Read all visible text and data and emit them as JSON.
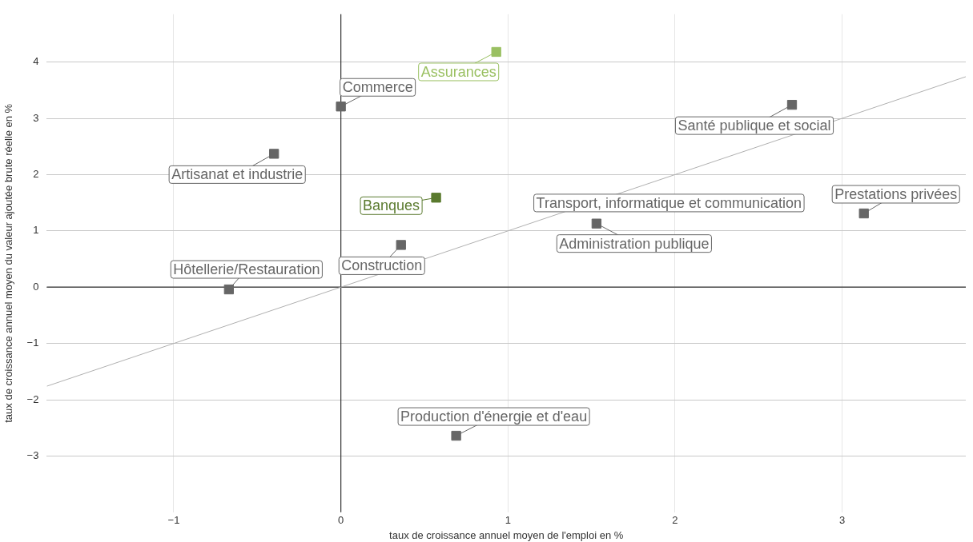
{
  "chart_data": {
    "type": "scatter",
    "xlabel": "taux de croissance annuel moyen de l'emploi en %",
    "ylabel": "taux de croissance annuel moyen du valeur ajoutée brute réelle en %",
    "xlim": [
      -1.76,
      3.74
    ],
    "ylim": [
      -4,
      4.85
    ],
    "xticks": [
      {
        "value": -1,
        "label": "−1"
      },
      0,
      1,
      2,
      3
    ],
    "yticks": [
      {
        "value": -3,
        "label": "−3"
      },
      {
        "value": -2,
        "label": "−2"
      },
      {
        "value": -1,
        "label": "−1"
      },
      0,
      1,
      2,
      3,
      4
    ],
    "grid": true,
    "marker": "square",
    "series": [
      {
        "name": "Commerce",
        "color": "#666666",
        "x": [
          0.0
        ],
        "values": [
          3.21
        ]
      },
      {
        "name": "Assurances",
        "color": "#9ac062",
        "x": [
          0.93
        ],
        "values": [
          4.18
        ]
      },
      {
        "name": "Santé publique et social",
        "color": "#666666",
        "x": [
          2.7
        ],
        "values": [
          3.24
        ]
      },
      {
        "name": "Artisanat et industrie",
        "color": "#666666",
        "x": [
          -0.4
        ],
        "values": [
          2.37
        ]
      },
      {
        "name": "Banques",
        "color": "#5a7a2e",
        "x": [
          0.57
        ],
        "values": [
          1.59
        ]
      },
      {
        "name": "Transport, informatique et communication",
        "color": "#666666",
        "x": [
          null
        ],
        "values": [
          null
        ]
      },
      {
        "name": "Prestations privées",
        "color": "#666666",
        "x": [
          3.13
        ],
        "values": [
          1.31
        ]
      },
      {
        "name": "Administration publique",
        "color": "#666666",
        "x": [
          1.53
        ],
        "values": [
          1.13
        ]
      },
      {
        "name": "Construction",
        "color": "#666666",
        "x": [
          0.36
        ],
        "values": [
          0.75
        ]
      },
      {
        "name": "Hôtellerie/Restauration",
        "color": "#666666",
        "x": [
          -0.67
        ],
        "values": [
          -0.04
        ]
      },
      {
        "name": "Production d'énergie et d'eau",
        "color": "#666666",
        "x": [
          0.69
        ],
        "values": [
          -2.64
        ]
      },
      {
        "type": "line",
        "marker": "none",
        "color": "#b0b0b0",
        "x": [
          -1.76,
          3.74
        ],
        "values": [
          -1.76,
          3.74
        ]
      }
    ]
  }
}
